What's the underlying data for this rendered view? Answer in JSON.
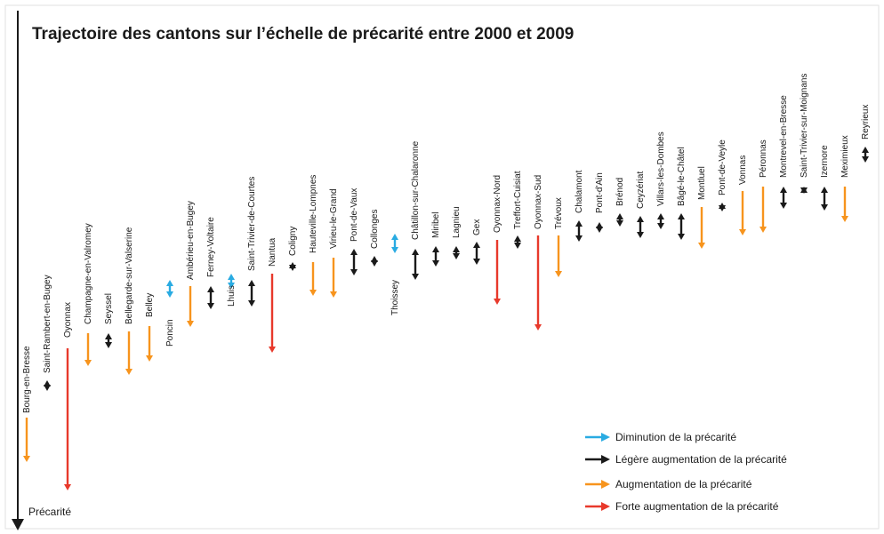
{
  "title": "Trajectoire des cantons sur l’échelle de précarité entre 2000 et 2009",
  "axis_label": "Précarité",
  "legend": [
    {
      "label": "Diminution de la précarité",
      "color": "#29abe2"
    },
    {
      "label": "Légère augmentation de la précarité",
      "color": "#1a1a1a"
    },
    {
      "label": "Augmentation de la précarité",
      "color": "#f7941d"
    },
    {
      "label": "Forte augmentation de la précarité",
      "color": "#e8392b"
    }
  ],
  "cantons": [
    {
      "name": "Bourg-en-Bresse",
      "color": "#f7941d"
    },
    {
      "name": "Saint-Rambert-en-Bugey",
      "color": "#1a1a1a"
    },
    {
      "name": "Oyonnax",
      "color": "#e8392b"
    },
    {
      "name": "Champagne-en-Valromey",
      "color": "#f7941d"
    },
    {
      "name": "Seyssel",
      "color": "#1a1a1a"
    },
    {
      "name": "Bellegarde-sur-Valserine",
      "color": "#f7941d"
    },
    {
      "name": "Belley",
      "color": "#f7941d"
    },
    {
      "name": "Poncin",
      "color": "#29abe2"
    },
    {
      "name": "Ambérieu-en-Bugey",
      "color": "#f7941d"
    },
    {
      "name": "Ferney-Voltaire",
      "color": "#1a1a1a"
    },
    {
      "name": "Lhuis",
      "color": "#29abe2"
    },
    {
      "name": "Saint-Trivier-de-Courtes",
      "color": "#1a1a1a"
    },
    {
      "name": "Nantua",
      "color": "#e8392b"
    },
    {
      "name": "Coligny",
      "color": "#1a1a1a"
    },
    {
      "name": "Hauteville-Lompnes",
      "color": "#f7941d"
    },
    {
      "name": "Virieu-le-Grand",
      "color": "#f7941d"
    },
    {
      "name": "Pont-de-Vaux",
      "color": "#1a1a1a"
    },
    {
      "name": "Collonges",
      "color": "#1a1a1a"
    },
    {
      "name": "Thoissey",
      "color": "#29abe2"
    },
    {
      "name": "Châtillon-sur-Chalaronne",
      "color": "#1a1a1a"
    },
    {
      "name": "Miribel",
      "color": "#1a1a1a"
    },
    {
      "name": "Lagnieu",
      "color": "#1a1a1a"
    },
    {
      "name": "Gex",
      "color": "#1a1a1a"
    },
    {
      "name": "Oyonnax-Nord",
      "color": "#e8392b"
    },
    {
      "name": "Treffort-Cuisiat",
      "color": "#1a1a1a"
    },
    {
      "name": "Oyonnax-Sud",
      "color": "#e8392b"
    },
    {
      "name": "Trévoux",
      "color": "#f7941d"
    },
    {
      "name": "Chalamont",
      "color": "#1a1a1a"
    },
    {
      "name": "Pont-d'Ain",
      "color": "#1a1a1a"
    },
    {
      "name": "Brénod",
      "color": "#1a1a1a"
    },
    {
      "name": "Ceyzériat",
      "color": "#1a1a1a"
    },
    {
      "name": "Villars-les-Dombes",
      "color": "#1a1a1a"
    },
    {
      "name": "Bâgé-le-Châtel",
      "color": "#1a1a1a"
    },
    {
      "name": "Montluel",
      "color": "#f7941d"
    },
    {
      "name": "Pont-de-Veyle",
      "color": "#1a1a1a"
    },
    {
      "name": "Vonnas",
      "color": "#f7941d"
    },
    {
      "name": "Péronnas",
      "color": "#f7941d"
    },
    {
      "name": "Montrevel-en-Bresse",
      "color": "#1a1a1a"
    },
    {
      "name": "Saint-Trivier-sur-Moignans",
      "color": "#1a1a1a"
    },
    {
      "name": "Izernore",
      "color": "#1a1a1a"
    },
    {
      "name": "Meximieux",
      "color": "#f7941d"
    },
    {
      "name": "Reyrieux",
      "color": "#1a1a1a"
    }
  ]
}
